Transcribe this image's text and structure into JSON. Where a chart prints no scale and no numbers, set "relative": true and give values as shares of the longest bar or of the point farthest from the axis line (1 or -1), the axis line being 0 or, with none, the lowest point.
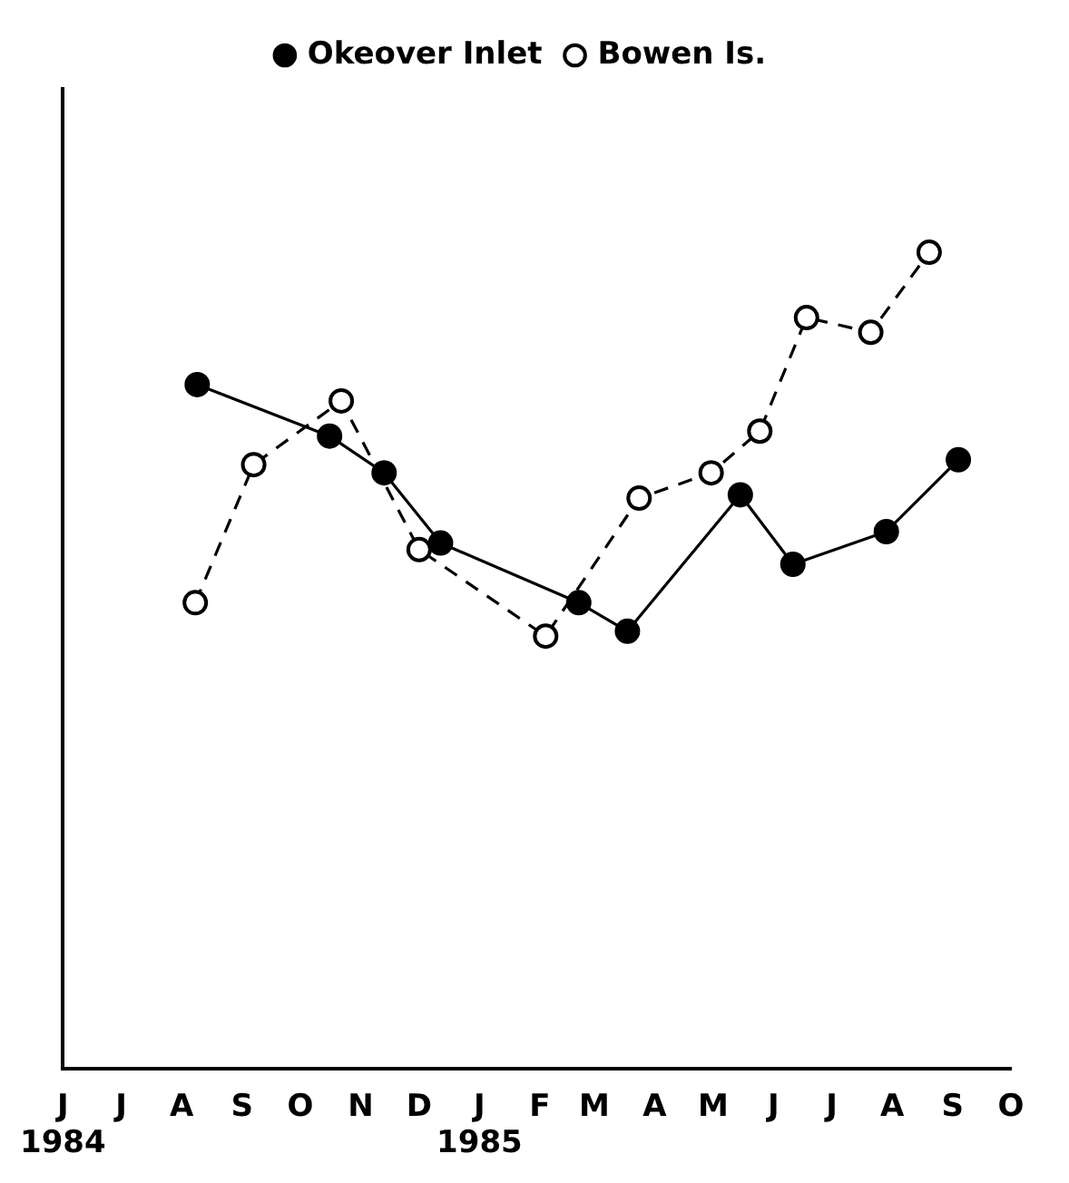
{
  "chart_data": {
    "type": "line",
    "relative": true,
    "legend": "top",
    "grid": false,
    "marker": "circle",
    "xlim": [
      "1984-06-01",
      "1985-10-01"
    ],
    "xticks": [
      {
        "value": "1984-06-01",
        "label": "J\n1984"
      },
      {
        "value": "1984-07-01",
        "label": "J"
      },
      {
        "value": "1984-08-01",
        "label": "A"
      },
      {
        "value": "1984-09-01",
        "label": "S"
      },
      {
        "value": "1984-10-01",
        "label": "O"
      },
      {
        "value": "1984-11-01",
        "label": "N"
      },
      {
        "value": "1984-12-01",
        "label": "D"
      },
      {
        "value": "1985-01-01",
        "label": "J\n1985"
      },
      {
        "value": "1985-02-01",
        "label": "F"
      },
      {
        "value": "1985-03-01",
        "label": "M"
      },
      {
        "value": "1985-04-01",
        "label": "A"
      },
      {
        "value": "1985-05-01",
        "label": "M"
      },
      {
        "value": "1985-06-01",
        "label": "J"
      },
      {
        "value": "1985-07-01",
        "label": "J"
      },
      {
        "value": "1985-08-01",
        "label": "A"
      },
      {
        "value": "1985-09-01",
        "label": "S"
      },
      {
        "value": "1985-10-01",
        "label": "O"
      }
    ],
    "series": [
      {
        "name": "Okeover Inlet",
        "color": "#000000",
        "line_style": "solid",
        "x": [
          "1984-08-09",
          "1984-10-16",
          "1984-11-13",
          "1984-12-12",
          "1985-02-21",
          "1985-03-18",
          "1985-05-15",
          "1985-06-11",
          "1985-07-29",
          "1985-09-04"
        ],
        "values": [
          0.838,
          0.775,
          0.73,
          0.644,
          0.571,
          0.536,
          0.703,
          0.618,
          0.658,
          0.746
        ]
      },
      {
        "name": "Bowen Is.",
        "color": "#000000",
        "line_style": "dashed",
        "x": [
          "1984-08-08",
          "1984-09-07",
          "1984-10-22",
          "1984-12-01",
          "1985-02-04",
          "1985-03-24",
          "1985-04-30",
          "1985-05-25",
          "1985-06-18",
          "1985-07-21",
          "1985-08-20"
        ],
        "values": [
          0.571,
          0.74,
          0.818,
          0.636,
          0.53,
          0.699,
          0.73,
          0.781,
          0.92,
          0.902,
          1
        ]
      }
    ]
  }
}
